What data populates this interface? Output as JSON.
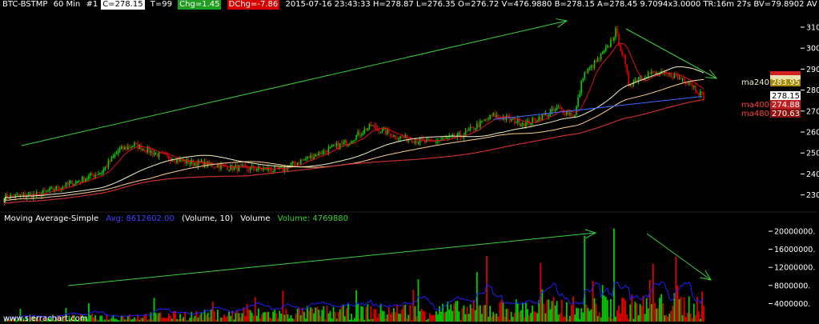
{
  "header": {
    "symbol": "BTC-BSTMP",
    "interval": "60 Min",
    "chart_no": "#1",
    "close": "C=278.15",
    "ticks": "T=99",
    "chg": "Chg=1.45",
    "dchg": "DChg=-7.86",
    "rest": "2015-07-16 23:43:33  H=278.87  L=276.35  O=276.72  V=476.9880  B=278.15  A=278.45  9.7094x3.0000  TR:16m 27s  BV=79.8902  AV"
  },
  "volume_header": {
    "study": "Moving Average-Simple",
    "avg": "Avg: 8612602.00",
    "params": "(Volume, 10)",
    "vol_label": "Volume",
    "vol_value": "Volume: 4769880"
  },
  "watermark": "www.sierrachart.com",
  "colors": {
    "background": "#000000",
    "up": "#00d000",
    "down": "#e00000",
    "ma_short": "#e01020",
    "ma240": "#f0f0c8",
    "ma400": "#ffd090",
    "ma480": "#c83030",
    "vol_ma": "#2020ff",
    "trend": "#3ad13a"
  },
  "chart_data": [
    {
      "type": "candlestick",
      "ylim": [
        223,
        318
      ],
      "y_ticks": [
        "310.00",
        "300.00",
        "290.00",
        "280.00",
        "270.00",
        "260.00",
        "250.00",
        "240.00",
        "230.00"
      ],
      "y_tick_values": [
        310,
        300,
        290,
        280,
        270,
        260,
        250,
        240,
        230
      ],
      "close_anchors": [
        [
          0,
          229
        ],
        [
          20,
          230
        ],
        [
          40,
          235
        ],
        [
          60,
          241
        ],
        [
          70,
          251
        ],
        [
          80,
          254
        ],
        [
          95,
          249
        ],
        [
          110,
          246
        ],
        [
          140,
          243
        ],
        [
          170,
          242
        ],
        [
          190,
          249
        ],
        [
          210,
          255
        ],
        [
          225,
          263
        ],
        [
          240,
          258
        ],
        [
          260,
          255
        ],
        [
          280,
          258
        ],
        [
          300,
          268
        ],
        [
          320,
          264
        ],
        [
          340,
          271
        ],
        [
          350,
          268
        ],
        [
          355,
          287
        ],
        [
          365,
          295
        ],
        [
          370,
          300
        ],
        [
          375,
          308
        ],
        [
          380,
          295
        ],
        [
          383,
          283
        ],
        [
          395,
          288
        ],
        [
          410,
          287
        ],
        [
          420,
          284
        ],
        [
          430,
          276
        ]
      ],
      "ma_labels": [
        {
          "name": "ma240",
          "value": "283.95",
          "color": "#f0f0c8",
          "box": "#a88a00"
        },
        {
          "name": "",
          "value": "278.15",
          "color": "#000",
          "box": "#ffffff"
        },
        {
          "name": "ma400",
          "value": "274.88",
          "color": "#ff4040",
          "box": "#c02020"
        },
        {
          "name": "ma480",
          "value": "270.63",
          "color": "#ff4040",
          "box": "#901010"
        }
      ],
      "extra_boxes": [
        "",
        ""
      ]
    },
    {
      "type": "bar",
      "ylim": [
        0,
        21600000
      ],
      "y_ticks": [
        "20000000.",
        "16000000.",
        "12000000.",
        "8000000.",
        "4000000."
      ],
      "y_tick_values": [
        20000000,
        16000000,
        12000000,
        8000000,
        4000000
      ],
      "avg": 8612602.0,
      "last": 4769880
    }
  ]
}
